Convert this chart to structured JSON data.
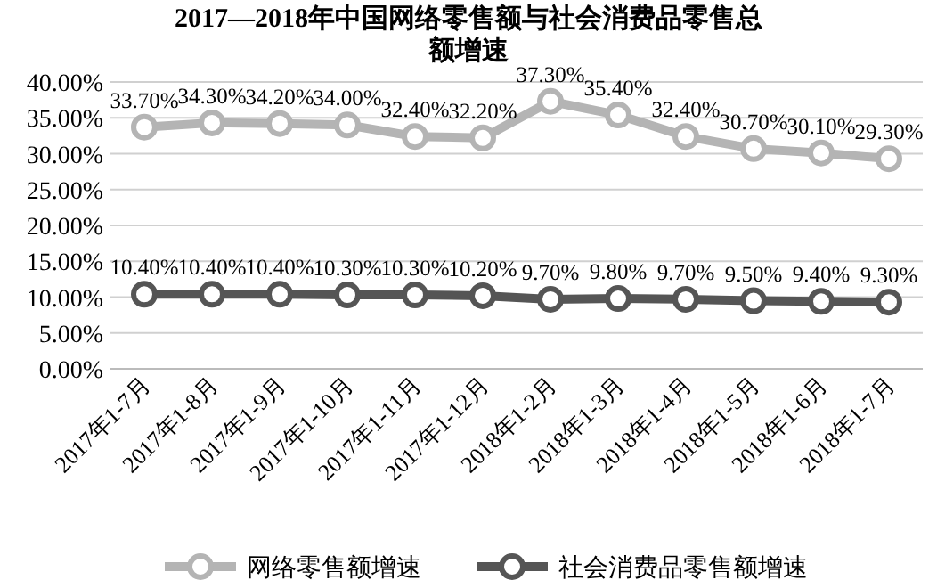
{
  "chart_data": {
    "type": "line",
    "title": "2017—2018年中国网络零售额与社会消费品零售总额增速",
    "categories": [
      "2017年1-7月",
      "2017年1-8月",
      "2017年1-9月",
      "2017年1-10月",
      "2017年1-11月",
      "2017年1-12月",
      "2018年1-2月",
      "2018年1-3月",
      "2018年1-4月",
      "2018年1-5月",
      "2018年1-6月",
      "2018年1-7月"
    ],
    "series": [
      {
        "name": "网络零售额增速",
        "color": "#b4b4b4",
        "values": [
          33.7,
          34.3,
          34.2,
          34.0,
          32.4,
          32.2,
          37.3,
          35.4,
          32.4,
          30.7,
          30.1,
          29.3
        ],
        "value_labels": [
          "33.70%",
          "34.30%",
          "34.20%",
          "34.00%",
          "32.40%",
          "32.20%",
          "37.30%",
          "35.40%",
          "32.40%",
          "30.70%",
          "30.10%",
          "29.30%"
        ]
      },
      {
        "name": "社会消费品零售额增速",
        "color": "#555555",
        "values": [
          10.4,
          10.4,
          10.4,
          10.3,
          10.3,
          10.2,
          9.7,
          9.8,
          9.7,
          9.5,
          9.4,
          9.3
        ],
        "value_labels": [
          "10.40%",
          "10.40%",
          "10.40%",
          "10.30%",
          "10.30%",
          "10.20%",
          "9.70%",
          "9.80%",
          "9.70%",
          "9.50%",
          "9.40%",
          "9.30%"
        ]
      }
    ],
    "ylim": [
      0,
      40
    ],
    "yticks": [
      {
        "value": 0,
        "label": "0.00%"
      },
      {
        "value": 5,
        "label": "5.00%"
      },
      {
        "value": 10,
        "label": "10.00%"
      },
      {
        "value": 15,
        "label": "15.00%"
      },
      {
        "value": 20,
        "label": "20.00%"
      },
      {
        "value": 25,
        "label": "25.00%"
      },
      {
        "value": 30,
        "label": "30.00%"
      },
      {
        "value": 35,
        "label": "35.00%"
      },
      {
        "value": 40,
        "label": "40.00%"
      }
    ],
    "grid": "y",
    "legend": "bottom",
    "marker": "circle",
    "line_style": "solid"
  }
}
